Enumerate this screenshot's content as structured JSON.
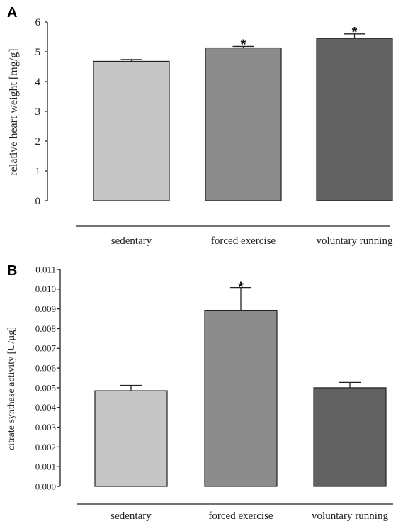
{
  "chart_data": [
    {
      "panel": "A",
      "type": "bar",
      "categories": [
        "sedentary",
        "forced exercise",
        "voluntary running"
      ],
      "values": [
        4.68,
        5.13,
        5.45
      ],
      "errors": [
        0.06,
        0.05,
        0.15
      ],
      "significance": [
        "",
        "*",
        "*"
      ],
      "colors": [
        "#c6c6c6",
        "#8c8c8c",
        "#626262"
      ],
      "ylabel": "relative heart weight [mg/g]",
      "xlabel": "",
      "ylim": [
        0,
        6
      ],
      "yticks": [
        "0",
        "1",
        "2",
        "3",
        "4",
        "5",
        "6"
      ],
      "grid": false,
      "legend": "none"
    },
    {
      "panel": "B",
      "type": "bar",
      "categories": [
        "sedentary",
        "forced exercise",
        "voluntary running"
      ],
      "values": [
        0.00485,
        0.00893,
        0.005
      ],
      "errors": [
        0.00027,
        0.00115,
        0.00027
      ],
      "significance": [
        "",
        "*",
        ""
      ],
      "colors": [
        "#c6c6c6",
        "#8c8c8c",
        "#626262"
      ],
      "ylabel": "citrate synthase activity  [U/µg]",
      "xlabel": "",
      "ylim": [
        0,
        0.011
      ],
      "yticks": [
        "0.000",
        "0.001",
        "0.002",
        "0.003",
        "0.004",
        "0.005",
        "0.006",
        "0.007",
        "0.008",
        "0.009",
        "0.010",
        "0.011"
      ],
      "grid": false,
      "legend": "none"
    }
  ]
}
